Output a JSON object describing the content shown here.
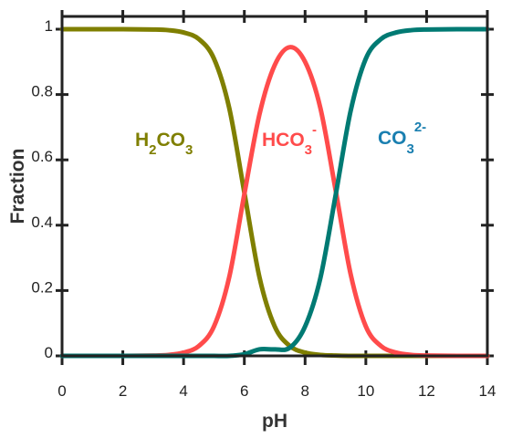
{
  "chart_data": {
    "type": "line",
    "title": "",
    "xlabel": "pH",
    "ylabel": "Fraction",
    "xlim": [
      0,
      14
    ],
    "ylim": [
      0,
      1
    ],
    "x_ticks": [
      0,
      2,
      4,
      6,
      8,
      10,
      12,
      14
    ],
    "x_tick_labels": [
      "0",
      "2",
      "4",
      "6",
      "8",
      "10",
      "12",
      "14"
    ],
    "y_ticks": [
      0,
      0.2,
      0.4,
      0.6,
      0.8,
      1
    ],
    "y_tick_labels": [
      "0",
      "0.2",
      "0.4",
      "0.6",
      "0.8",
      "1"
    ],
    "grid": false,
    "legend": "none",
    "x": [
      0,
      1,
      2,
      3,
      3.5,
      4,
      4.5,
      5,
      5.5,
      6,
      6.5,
      7,
      7.5,
      8,
      8.5,
      9,
      9.5,
      10,
      10.5,
      11,
      11.5,
      12,
      13,
      14
    ],
    "series": [
      {
        "color": "#7f7f00",
        "label": {
          "base": "H",
          "sub1": "2",
          "mid": "CO",
          "sub2": "3",
          "sup": ""
        },
        "values": [
          1,
          1,
          1,
          0.999,
          0.997,
          0.99,
          0.97,
          0.91,
          0.76,
          0.5,
          0.24,
          0.09,
          0.03,
          0.01,
          0.003,
          0.001,
          0,
          0,
          0,
          0,
          0,
          0,
          0,
          0
        ]
      },
      {
        "color": "#ff4b4b",
        "label": {
          "base": "",
          "sub1": "",
          "mid": "HCO",
          "sub2": "3",
          "sup": "-"
        },
        "values": [
          0,
          0,
          0,
          0.001,
          0.003,
          0.01,
          0.03,
          0.09,
          0.24,
          0.495,
          0.74,
          0.89,
          0.945,
          0.9,
          0.76,
          0.51,
          0.25,
          0.09,
          0.03,
          0.01,
          0.003,
          0.001,
          0,
          0
        ]
      },
      {
        "color": "#007a73",
        "label": {
          "base": "",
          "sub1": "",
          "mid": "CO",
          "sub2": "3",
          "sup": "2-"
        },
        "values": [
          0,
          0,
          0,
          0,
          0,
          0,
          0,
          0,
          0,
          0.005,
          0.02,
          0.02,
          0.025,
          0.09,
          0.237,
          0.489,
          0.75,
          0.91,
          0.97,
          0.99,
          0.997,
          0.999,
          1,
          1
        ]
      }
    ]
  }
}
